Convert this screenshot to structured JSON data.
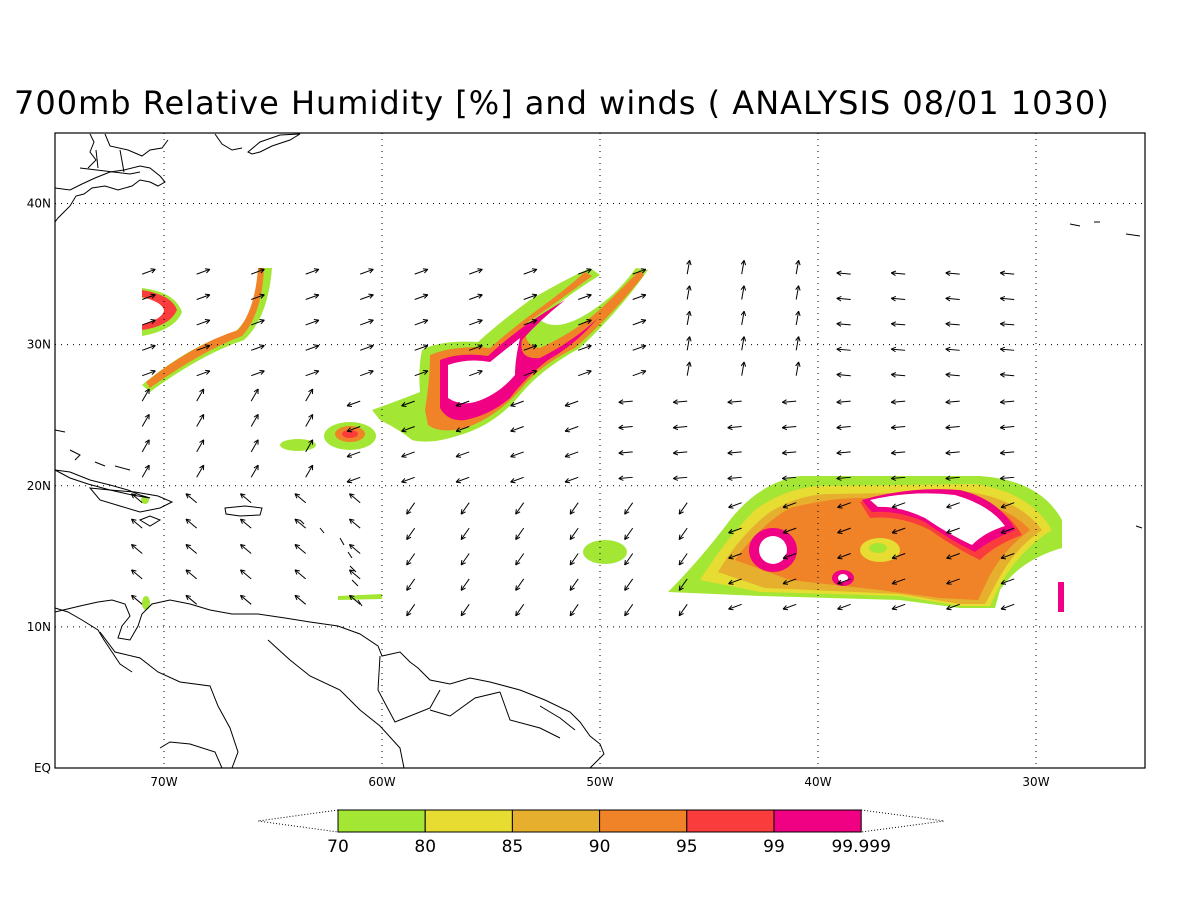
{
  "title": "700mb Relative Humidity [%] and winds ( ANALYSIS 08/01 1030)",
  "map": {
    "lon_range": [
      -75,
      -25
    ],
    "lat_range": [
      0,
      45
    ],
    "lon_ticks": [
      {
        "value": -70,
        "label": "70W"
      },
      {
        "value": -60,
        "label": "60W"
      },
      {
        "value": -50,
        "label": "50W"
      },
      {
        "value": -40,
        "label": "40W"
      },
      {
        "value": -30,
        "label": "30W"
      }
    ],
    "lat_ticks": [
      {
        "value": 0,
        "label": "EQ"
      },
      {
        "value": 10,
        "label": "10N"
      },
      {
        "value": 20,
        "label": "20N"
      },
      {
        "value": 30,
        "label": "30N"
      },
      {
        "value": 40,
        "label": "40N"
      }
    ],
    "wind_domain": {
      "lon": [
        -71,
        -29
      ],
      "lat": [
        11,
        35
      ]
    }
  },
  "legend": {
    "labels": [
      "70",
      "80",
      "85",
      "90",
      "95",
      "99",
      "99.999"
    ],
    "colors": [
      "#a4e634",
      "#e6dc32",
      "#e6af2d",
      "#f08228",
      "#fa3c3c",
      "#f00082"
    ]
  }
}
